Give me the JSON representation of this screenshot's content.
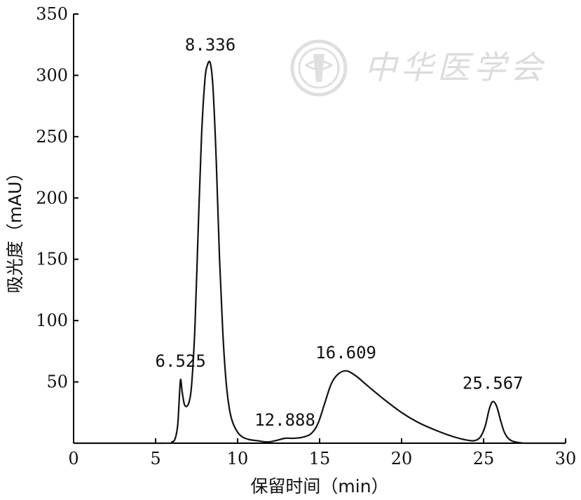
{
  "chart_data": {
    "type": "line",
    "xlabel": "保留时间（min）",
    "ylabel": "吸光度（mAU）",
    "xlim": [
      0,
      30
    ],
    "ylim": [
      0,
      350
    ],
    "xticks": [
      0,
      5,
      10,
      15,
      20,
      25,
      30
    ],
    "yticks": [
      50,
      100,
      150,
      200,
      250,
      300,
      350
    ],
    "grid": false,
    "series": [
      {
        "x": [
          0,
          5.5,
          6.0,
          6.2,
          6.35,
          6.45,
          6.525,
          6.62,
          6.75,
          6.9,
          7.05,
          7.2,
          7.4,
          7.6,
          7.8,
          8.0,
          8.15,
          8.336,
          8.5,
          8.7,
          8.9,
          9.1,
          9.3,
          9.5,
          9.7,
          10.0,
          10.3,
          10.7,
          11.2,
          11.8,
          12.3,
          12.888,
          13.4,
          14.0,
          14.5,
          14.9,
          15.3,
          15.7,
          16.1,
          16.609,
          17.2,
          18.0,
          19.0,
          20.0,
          21.0,
          22.0,
          23.0,
          23.8,
          24.4,
          24.8,
          25.1,
          25.35,
          25.567,
          25.8,
          26.05,
          26.3,
          26.7,
          27.5,
          28.5,
          30
        ],
        "y": [
          0,
          0,
          1,
          4,
          15,
          38,
          52,
          42,
          32,
          30,
          34,
          48,
          95,
          175,
          250,
          295,
          308,
          310,
          290,
          230,
          150,
          90,
          50,
          28,
          17,
          9,
          5,
          3,
          2,
          1,
          2,
          4,
          4,
          5,
          8,
          16,
          32,
          48,
          56,
          59,
          55,
          46,
          35,
          25,
          17,
          11,
          6,
          3,
          2,
          5,
          14,
          28,
          34,
          30,
          18,
          8,
          2,
          0,
          0,
          0
        ]
      }
    ],
    "annotations": [
      {
        "text": "6.525",
        "x": 6.525,
        "y": 52
      },
      {
        "text": "8.336",
        "x": 8.336,
        "y": 310
      },
      {
        "text": "12.888",
        "x": 12.888,
        "y": 4
      },
      {
        "text": "16.609",
        "x": 16.609,
        "y": 59
      },
      {
        "text": "25.567",
        "x": 25.567,
        "y": 34
      }
    ]
  },
  "watermark": {
    "text": "中华医学会",
    "seal_icon": "society-seal-icon"
  }
}
